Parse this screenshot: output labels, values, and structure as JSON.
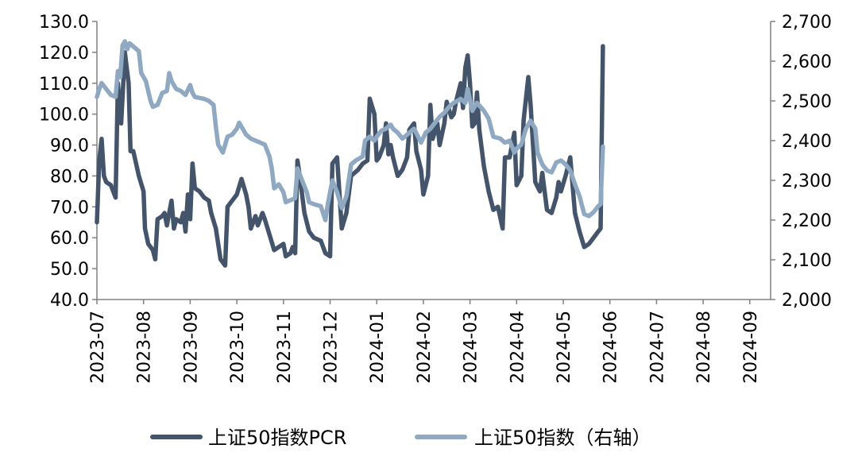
{
  "chart_data": {
    "type": "line",
    "x_categories": [
      "2023-07",
      "2023-08",
      "2023-09",
      "2023-10",
      "2023-11",
      "2023-12",
      "2024-01",
      "2024-02",
      "2024-03",
      "2024-04",
      "2024-05",
      "2024-06",
      "2024-07",
      "2024-08",
      "2024-09"
    ],
    "y_left": {
      "range": [
        40,
        130
      ],
      "ticks": [
        "40.0",
        "50.0",
        "60.0",
        "70.0",
        "80.0",
        "90.0",
        "100.0",
        "110.0",
        "120.0",
        "130.0"
      ]
    },
    "y_right": {
      "range": [
        2000,
        2700
      ],
      "ticks": [
        "2,000",
        "2,100",
        "2,200",
        "2,300",
        "2,400",
        "2,500",
        "2,600",
        "2,700"
      ]
    },
    "legend_position": "bottom",
    "grid": false,
    "series": [
      {
        "name": "上证50指数PCR",
        "axis": "left",
        "color": "#44546A",
        "points": [
          [
            0,
            65
          ],
          [
            0.05,
            85
          ],
          [
            0.1,
            92
          ],
          [
            0.15,
            80
          ],
          [
            0.2,
            78
          ],
          [
            0.3,
            77
          ],
          [
            0.4,
            73
          ],
          [
            0.45,
            110
          ],
          [
            0.52,
            97
          ],
          [
            0.6,
            120
          ],
          [
            0.68,
            110
          ],
          [
            0.72,
            88
          ],
          [
            0.78,
            88
          ],
          [
            0.9,
            80
          ],
          [
            1.0,
            75
          ],
          [
            1.03,
            63
          ],
          [
            1.1,
            58
          ],
          [
            1.2,
            56
          ],
          [
            1.25,
            53
          ],
          [
            1.3,
            66
          ],
          [
            1.4,
            67
          ],
          [
            1.45,
            68
          ],
          [
            1.5,
            64
          ],
          [
            1.6,
            72
          ],
          [
            1.65,
            63
          ],
          [
            1.7,
            66
          ],
          [
            1.8,
            65
          ],
          [
            1.85,
            68
          ],
          [
            1.9,
            62
          ],
          [
            1.95,
            74
          ],
          [
            2.0,
            66
          ],
          [
            2.05,
            84
          ],
          [
            2.1,
            76
          ],
          [
            2.2,
            75
          ],
          [
            2.3,
            73
          ],
          [
            2.4,
            72
          ],
          [
            2.45,
            68
          ],
          [
            2.55,
            63
          ],
          [
            2.65,
            53
          ],
          [
            2.75,
            51
          ],
          [
            2.8,
            70
          ],
          [
            2.9,
            72
          ],
          [
            3.0,
            74
          ],
          [
            3.1,
            79
          ],
          [
            3.2,
            74
          ],
          [
            3.25,
            70
          ],
          [
            3.3,
            63
          ],
          [
            3.4,
            67
          ],
          [
            3.45,
            64
          ],
          [
            3.55,
            68
          ],
          [
            3.6,
            66
          ],
          [
            3.7,
            61
          ],
          [
            3.8,
            56
          ],
          [
            3.9,
            57
          ],
          [
            4.0,
            58
          ],
          [
            4.05,
            54
          ],
          [
            4.15,
            55
          ],
          [
            4.2,
            57
          ],
          [
            4.25,
            55
          ],
          [
            4.3,
            85
          ],
          [
            4.35,
            80
          ],
          [
            4.45,
            68
          ],
          [
            4.55,
            62
          ],
          [
            4.65,
            60
          ],
          [
            4.8,
            59
          ],
          [
            4.9,
            55
          ],
          [
            5.0,
            54
          ],
          [
            5.05,
            84
          ],
          [
            5.15,
            86
          ],
          [
            5.25,
            63
          ],
          [
            5.35,
            68
          ],
          [
            5.45,
            80
          ],
          [
            5.6,
            82
          ],
          [
            5.7,
            84
          ],
          [
            5.8,
            85
          ],
          [
            5.85,
            105
          ],
          [
            5.95,
            100
          ],
          [
            6.0,
            85
          ],
          [
            6.05,
            86
          ],
          [
            6.15,
            90
          ],
          [
            6.2,
            97
          ],
          [
            6.25,
            87
          ],
          [
            6.3,
            90
          ],
          [
            6.35,
            86
          ],
          [
            6.45,
            80
          ],
          [
            6.55,
            82
          ],
          [
            6.65,
            86
          ],
          [
            6.7,
            95
          ],
          [
            6.8,
            97
          ],
          [
            6.85,
            88
          ],
          [
            6.95,
            82
          ],
          [
            7.0,
            74
          ],
          [
            7.1,
            80
          ],
          [
            7.15,
            103
          ],
          [
            7.2,
            92
          ],
          [
            7.3,
            97
          ],
          [
            7.35,
            90
          ],
          [
            7.45,
            97
          ],
          [
            7.5,
            104
          ],
          [
            7.6,
            99
          ],
          [
            7.65,
            100
          ],
          [
            7.7,
            104
          ],
          [
            7.8,
            110
          ],
          [
            7.85,
            102
          ],
          [
            7.9,
            115
          ],
          [
            7.95,
            119
          ],
          [
            8.0,
            110
          ],
          [
            8.05,
            96
          ],
          [
            8.1,
            97
          ],
          [
            8.15,
            107
          ],
          [
            8.2,
            95
          ],
          [
            8.3,
            83
          ],
          [
            8.4,
            75
          ],
          [
            8.5,
            69
          ],
          [
            8.6,
            70
          ],
          [
            8.7,
            63
          ],
          [
            8.75,
            86
          ],
          [
            8.85,
            86
          ],
          [
            8.95,
            94
          ],
          [
            9.0,
            77
          ],
          [
            9.1,
            80
          ],
          [
            9.15,
            98
          ],
          [
            9.25,
            112
          ],
          [
            9.3,
            103
          ],
          [
            9.4,
            78
          ],
          [
            9.5,
            75
          ],
          [
            9.55,
            81
          ],
          [
            9.65,
            69
          ],
          [
            9.75,
            68
          ],
          [
            9.85,
            73
          ],
          [
            9.9,
            78
          ],
          [
            9.95,
            75
          ],
          [
            10.05,
            80
          ],
          [
            10.15,
            86
          ],
          [
            10.25,
            68
          ],
          [
            10.35,
            62
          ],
          [
            10.45,
            57
          ],
          [
            10.55,
            58
          ],
          [
            10.65,
            60
          ],
          [
            10.7,
            61
          ],
          [
            10.75,
            62
          ],
          [
            10.8,
            63
          ],
          [
            10.85,
            122
          ]
        ]
      },
      {
        "name": "上证50指数（右轴）",
        "axis": "right",
        "color": "#8EA9C1",
        "points": [
          [
            0,
            2510
          ],
          [
            0.05,
            2530
          ],
          [
            0.1,
            2545
          ],
          [
            0.2,
            2530
          ],
          [
            0.3,
            2515
          ],
          [
            0.4,
            2510
          ],
          [
            0.45,
            2575
          ],
          [
            0.5,
            2560
          ],
          [
            0.55,
            2640
          ],
          [
            0.6,
            2650
          ],
          [
            0.65,
            2630
          ],
          [
            0.7,
            2645
          ],
          [
            0.8,
            2635
          ],
          [
            0.9,
            2625
          ],
          [
            0.95,
            2570
          ],
          [
            1.05,
            2550
          ],
          [
            1.15,
            2500
          ],
          [
            1.2,
            2485
          ],
          [
            1.3,
            2490
          ],
          [
            1.4,
            2520
          ],
          [
            1.5,
            2525
          ],
          [
            1.55,
            2570
          ],
          [
            1.6,
            2550
          ],
          [
            1.7,
            2530
          ],
          [
            1.8,
            2525
          ],
          [
            1.9,
            2515
          ],
          [
            2.0,
            2540
          ],
          [
            2.05,
            2520
          ],
          [
            2.1,
            2510
          ],
          [
            2.3,
            2505
          ],
          [
            2.4,
            2500
          ],
          [
            2.5,
            2490
          ],
          [
            2.55,
            2435
          ],
          [
            2.6,
            2390
          ],
          [
            2.7,
            2370
          ],
          [
            2.8,
            2410
          ],
          [
            2.9,
            2415
          ],
          [
            3.0,
            2430
          ],
          [
            3.05,
            2445
          ],
          [
            3.1,
            2435
          ],
          [
            3.2,
            2415
          ],
          [
            3.3,
            2405
          ],
          [
            3.4,
            2400
          ],
          [
            3.5,
            2395
          ],
          [
            3.6,
            2390
          ],
          [
            3.7,
            2360
          ],
          [
            3.75,
            2330
          ],
          [
            3.8,
            2280
          ],
          [
            3.9,
            2290
          ],
          [
            4.0,
            2270
          ],
          [
            4.05,
            2245
          ],
          [
            4.15,
            2250
          ],
          [
            4.25,
            2255
          ],
          [
            4.3,
            2330
          ],
          [
            4.4,
            2300
          ],
          [
            4.5,
            2270
          ],
          [
            4.55,
            2245
          ],
          [
            4.65,
            2240
          ],
          [
            4.8,
            2235
          ],
          [
            4.9,
            2200
          ],
          [
            4.95,
            2240
          ],
          [
            5.05,
            2300
          ],
          [
            5.15,
            2270
          ],
          [
            5.25,
            2230
          ],
          [
            5.35,
            2260
          ],
          [
            5.45,
            2340
          ],
          [
            5.55,
            2350
          ],
          [
            5.7,
            2360
          ],
          [
            5.75,
            2400
          ],
          [
            5.85,
            2410
          ],
          [
            5.95,
            2400
          ],
          [
            6.0,
            2410
          ],
          [
            6.1,
            2425
          ],
          [
            6.2,
            2430
          ],
          [
            6.3,
            2440
          ],
          [
            6.35,
            2430
          ],
          [
            6.45,
            2420
          ],
          [
            6.55,
            2405
          ],
          [
            6.65,
            2415
          ],
          [
            6.8,
            2430
          ],
          [
            6.95,
            2395
          ],
          [
            7.05,
            2420
          ],
          [
            7.15,
            2430
          ],
          [
            7.25,
            2445
          ],
          [
            7.35,
            2460
          ],
          [
            7.45,
            2470
          ],
          [
            7.55,
            2485
          ],
          [
            7.65,
            2495
          ],
          [
            7.8,
            2505
          ],
          [
            7.9,
            2495
          ],
          [
            7.95,
            2530
          ],
          [
            8.05,
            2475
          ],
          [
            8.15,
            2495
          ],
          [
            8.3,
            2475
          ],
          [
            8.4,
            2455
          ],
          [
            8.5,
            2410
          ],
          [
            8.65,
            2405
          ],
          [
            8.75,
            2395
          ],
          [
            8.85,
            2400
          ],
          [
            8.95,
            2370
          ],
          [
            9.0,
            2380
          ],
          [
            9.1,
            2390
          ],
          [
            9.2,
            2430
          ],
          [
            9.3,
            2450
          ],
          [
            9.4,
            2430
          ],
          [
            9.45,
            2370
          ],
          [
            9.55,
            2340
          ],
          [
            9.65,
            2325
          ],
          [
            9.75,
            2320
          ],
          [
            9.85,
            2345
          ],
          [
            9.95,
            2350
          ],
          [
            10.05,
            2340
          ],
          [
            10.15,
            2325
          ],
          [
            10.25,
            2290
          ],
          [
            10.35,
            2260
          ],
          [
            10.45,
            2215
          ],
          [
            10.55,
            2210
          ],
          [
            10.65,
            2220
          ],
          [
            10.75,
            2235
          ],
          [
            10.8,
            2240
          ],
          [
            10.85,
            2385
          ]
        ]
      }
    ]
  }
}
